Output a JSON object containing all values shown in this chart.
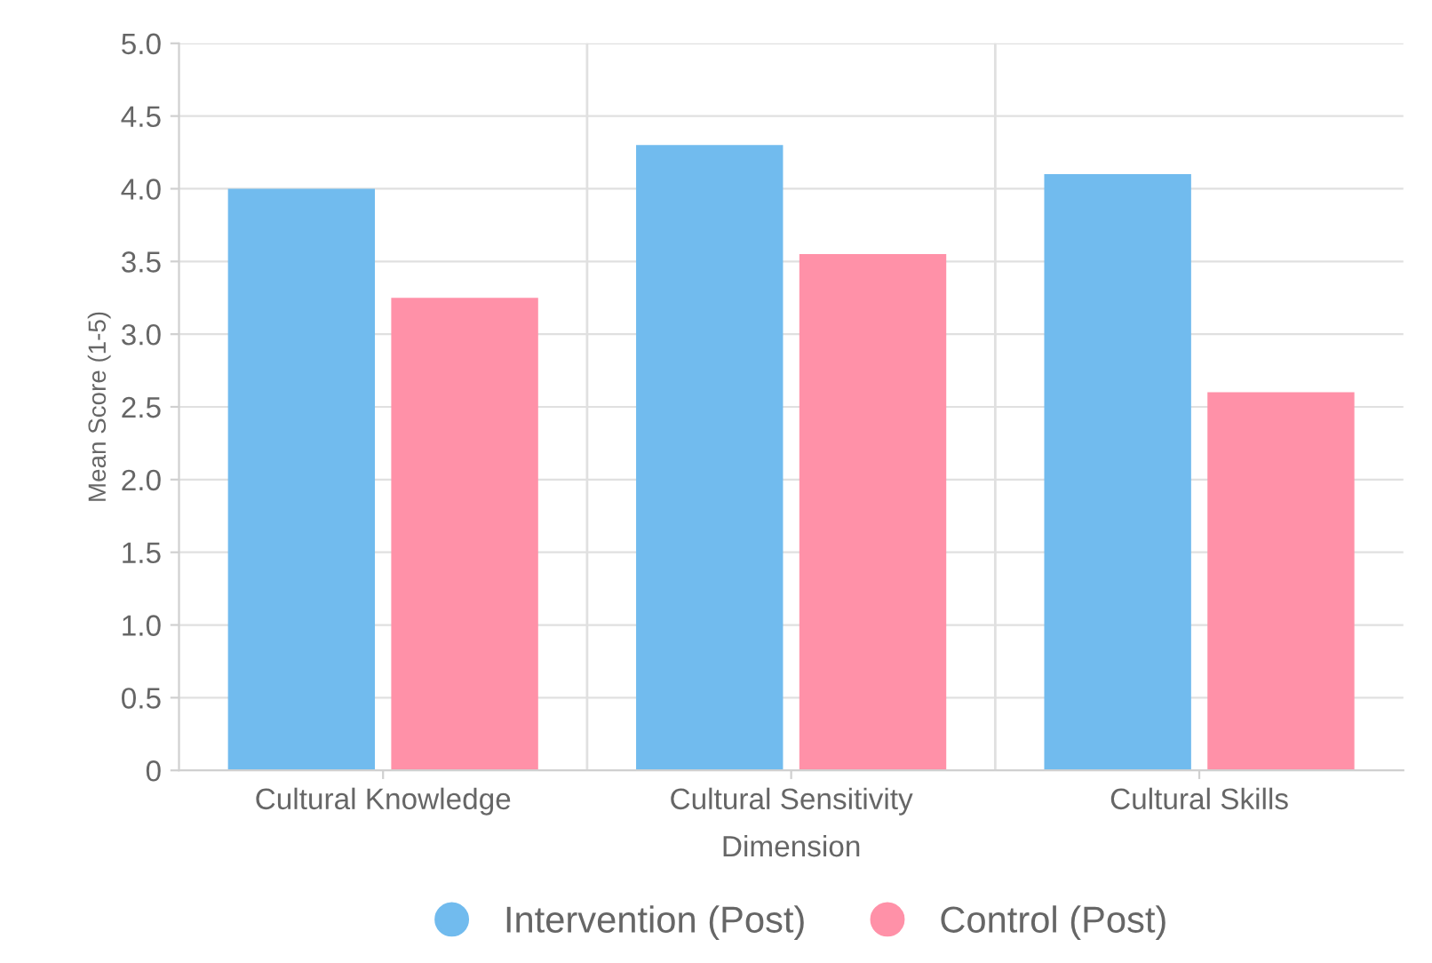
{
  "chart_data": {
    "type": "bar",
    "xlabel": "Dimension",
    "ylabel": "Mean Score (1-5)",
    "categories": [
      "Cultural Knowledge",
      "Cultural Sensitivity",
      "Cultural Skills"
    ],
    "series": [
      {
        "name": "Intervention (Post)",
        "color": "#71bbee",
        "values": [
          4.0,
          4.3,
          4.1
        ]
      },
      {
        "name": "Control (Post)",
        "color": "#ff91a8",
        "values": [
          3.25,
          3.55,
          2.6
        ]
      }
    ],
    "ylim": [
      0,
      5
    ],
    "yticks": [
      0,
      {
        "value": 0.5,
        "label": "0.5"
      },
      {
        "value": 1,
        "label": "1.0"
      },
      {
        "value": 1.5,
        "label": "1.5"
      },
      {
        "value": 2,
        "label": "2.0"
      },
      {
        "value": 2.5,
        "label": "2.5"
      },
      {
        "value": 3,
        "label": "3.0"
      },
      {
        "value": 3.5,
        "label": "3.5"
      },
      {
        "value": 4,
        "label": "4.0"
      },
      {
        "value": 4.5,
        "label": "4.5"
      },
      {
        "value": 5,
        "label": "5.0"
      }
    ],
    "grid": true,
    "legend": "bottom"
  }
}
